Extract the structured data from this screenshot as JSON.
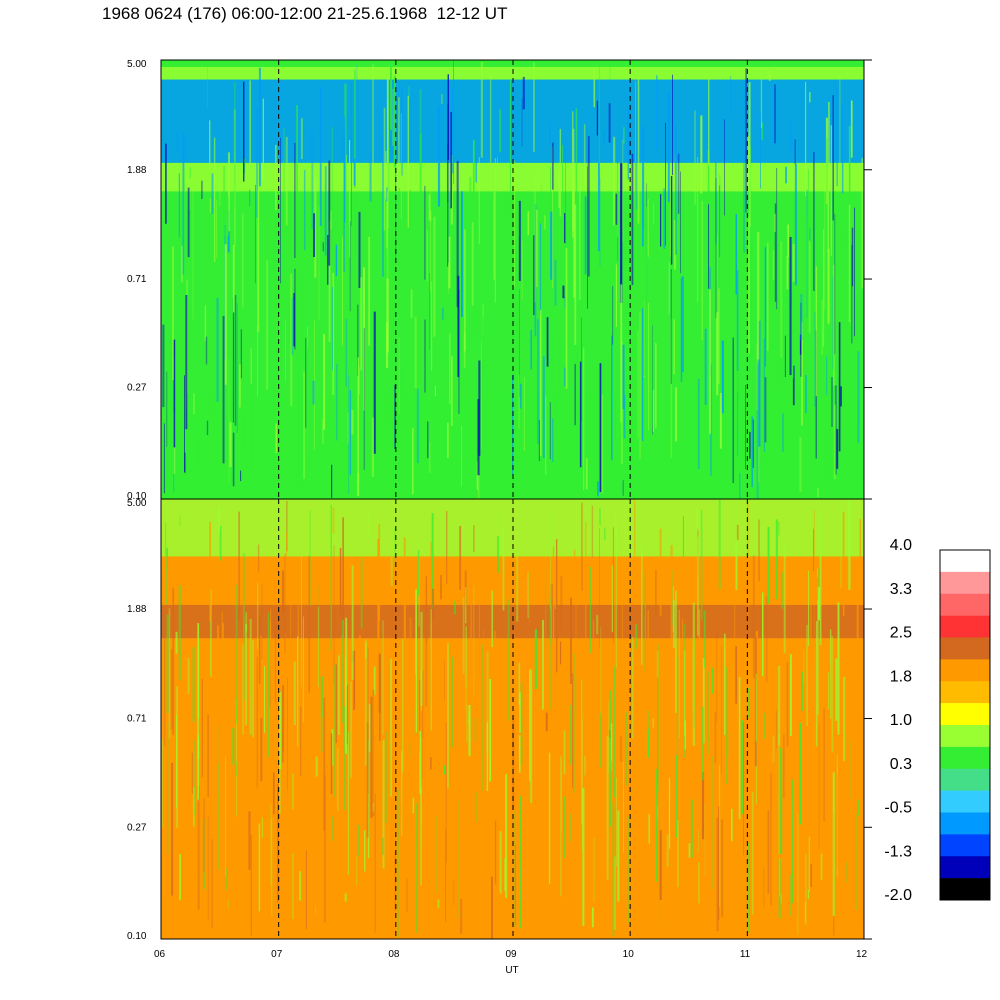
{
  "title": "1968 0624 (176) 06:00-12:00 21-25.6.1968  12-12 UT",
  "chart_data": [
    {
      "type": "heatmap",
      "panel": "upper",
      "x_range": [
        "06:00",
        "12:00"
      ],
      "x_ticks": [
        "06",
        "07",
        "08",
        "09",
        "10",
        "11",
        "12"
      ],
      "y_ticks": [
        "5.00",
        "1.88",
        "0.71",
        "0.27",
        "0.10"
      ],
      "y_scale": "log",
      "y_range": [
        0.1,
        5.0
      ],
      "grid": "dashed vertical lines at each hour",
      "dominant_level": 0.3,
      "bands": [
        {
          "y_from": 4.2,
          "y_to": 4.7,
          "level": 1.0
        },
        {
          "y_from": 1.55,
          "y_to": 2.0,
          "level": 1.0
        },
        {
          "y_from": 2.0,
          "y_to": 4.2,
          "level": -0.5
        },
        {
          "y_from": 0.1,
          "y_to": 0.25,
          "level": 0.3
        }
      ]
    },
    {
      "type": "heatmap",
      "panel": "lower",
      "x_range": [
        "06:00",
        "12:00"
      ],
      "x_ticks": [
        "06",
        "07",
        "08",
        "09",
        "10",
        "11",
        "12"
      ],
      "y_ticks": [
        "5.00",
        "1.88",
        "0.71",
        "0.27",
        "0.10"
      ],
      "y_scale": "log",
      "y_range": [
        0.1,
        5.0
      ],
      "grid": "dashed vertical lines at each hour",
      "dominant_level": 1.8,
      "bands": [
        {
          "y_from": 3.0,
          "y_to": 5.0,
          "level": 1.0
        },
        {
          "y_from": 1.45,
          "y_to": 1.95,
          "level": 2.5
        },
        {
          "y_from": 0.1,
          "y_to": 0.25,
          "level": 1.8
        }
      ]
    }
  ],
  "xlabel": "UT",
  "colorbar": {
    "labels": [
      "4.0",
      "3.3",
      "2.5",
      "1.8",
      "1.0",
      "0.3",
      "-0.5",
      "-1.3",
      "-2.0"
    ],
    "colors": [
      "#ffffff",
      "#ff9999",
      "#ff6666",
      "#ff3333",
      "#d2691e",
      "#ff9900",
      "#ffbb00",
      "#ffff00",
      "#99ff33",
      "#33ee33",
      "#44dd88",
      "#33ccff",
      "#0099ff",
      "#0044ff",
      "#0000bb",
      "#000000"
    ]
  }
}
